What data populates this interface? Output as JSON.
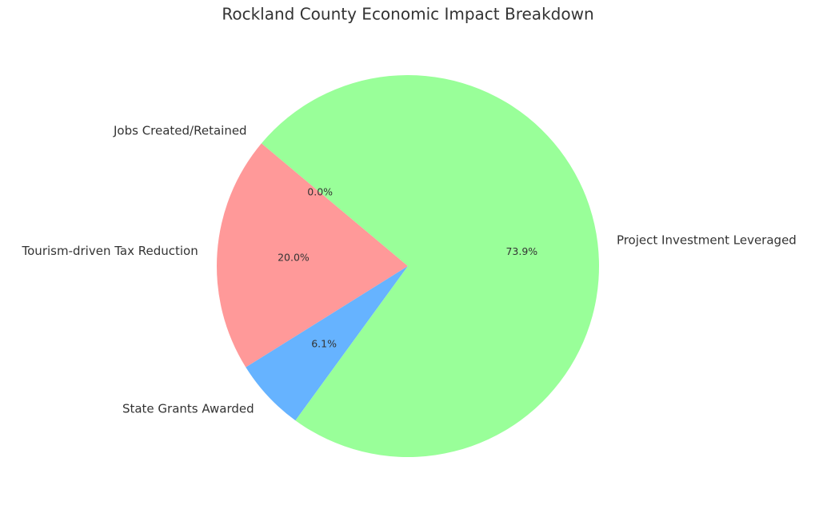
{
  "chart_data": {
    "type": "pie",
    "title": "Rockland County Economic Impact Breakdown",
    "categories": [
      "Tourism-driven Tax Reduction",
      "State Grants Awarded",
      "Project Investment Leveraged",
      "Jobs Created/Retained"
    ],
    "values": [
      20.0,
      6.1,
      73.9,
      0.0
    ],
    "value_labels": [
      "20.0%",
      "6.1%",
      "73.9%",
      "0.0%"
    ],
    "colors": [
      "#ff9999",
      "#66b3ff",
      "#99ff99",
      "#ffcc99"
    ],
    "startangle": 140
  }
}
